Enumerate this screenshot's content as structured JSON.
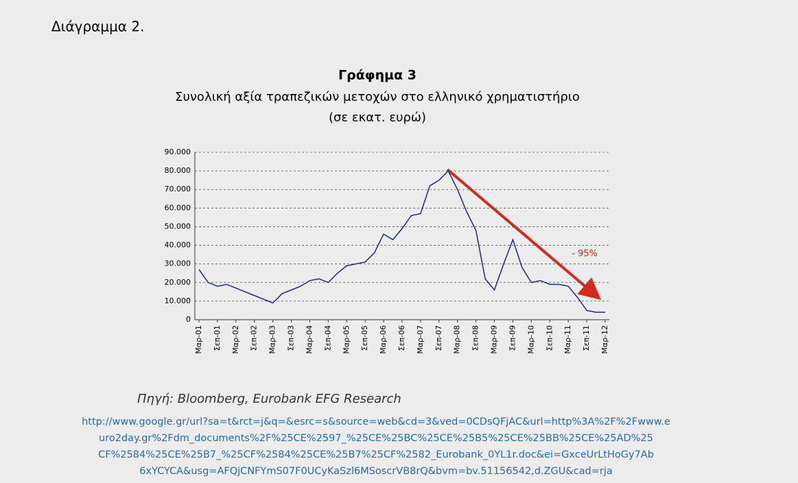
{
  "header": "Διάγραμμα 2.",
  "chart_data": {
    "type": "line",
    "title": "Γράφημα 3",
    "subtitle": "Συνολική αξία τραπεζικών μετοχών στο ελληνικό χρηματιστήριο",
    "unit_note": "(σε εκατ. ευρώ)",
    "annotation": "- 95%",
    "color": "#1f2a7a",
    "categories": [
      "Μαρ-01",
      null,
      "Σεπ-01",
      null,
      "Μαρ-02",
      null,
      "Σεπ-02",
      null,
      "Μαρ-03",
      null,
      "Σεπ-03",
      null,
      "Μαρ-04",
      null,
      "Σεπ-04",
      null,
      "Μαρ-05",
      null,
      "Σεπ-05",
      null,
      "Μαρ-06",
      null,
      "Σεπ-06",
      null,
      "Μαρ-07",
      null,
      "Σεπ-07",
      null,
      "Μαρ-08",
      null,
      "Σεπ-08",
      null,
      "Μαρ-09",
      null,
      "Σεπ-09",
      null,
      "Μαρ-10",
      null,
      "Σεπ-10",
      null,
      "Μαρ-11",
      null,
      "Σεπ-11",
      null,
      "Μαρ-12"
    ],
    "values": [
      27000,
      20000,
      18000,
      19000,
      17000,
      15000,
      13000,
      11000,
      9000,
      14000,
      16000,
      18000,
      21000,
      22000,
      20000,
      25000,
      29000,
      30000,
      31000,
      36000,
      46000,
      43000,
      49000,
      56000,
      57000,
      72000,
      75000,
      80000,
      70000,
      58000,
      48000,
      22000,
      16000,
      30000,
      43000,
      28000,
      20000,
      21000,
      19000,
      19000,
      18000,
      12000,
      5000,
      4000,
      4000
    ],
    "ylim": [
      0,
      90000
    ],
    "yticks": [
      0,
      {
        "value": 10000,
        "label": "10.000"
      },
      {
        "value": 20000,
        "label": "20.000"
      },
      {
        "value": 30000,
        "label": "30.000"
      },
      {
        "value": 40000,
        "label": "40.000"
      },
      {
        "value": 50000,
        "label": "50.000"
      },
      {
        "value": 60000,
        "label": "60.000"
      },
      {
        "value": 70000,
        "label": "70.000"
      },
      {
        "value": 80000,
        "label": "80.000"
      },
      {
        "value": 90000,
        "label": "90.000"
      }
    ],
    "grid": true
  },
  "source": "Πηγή: Bloomberg, Eurobank EFG Research",
  "url_lines": [
    "http://www.google.gr/url?sa=t&rct=j&q=&esrc=s&source=web&cd=3&ved=0CDsQFjAC&url=http%3A%2F%2Fwww.e",
    "uro2day.gr%2Fdm_documents%2F%25CE%2597_%25CE%25BC%25CE%25B5%25CE%25BB%25CE%25AD%25",
    "CF%2584%25CE%25B7_%25CF%2584%25CE%25B7%25CF%2582_Eurobank_0YL1r.doc&ei=GxceUrLtHoGy7Ab",
    "6xYCYCA&usg=AFQjCNFYmS07F0UCyKaSzl6MSoscrVB8rQ&bvm=bv.51156542,d.ZGU&cad=rja"
  ]
}
